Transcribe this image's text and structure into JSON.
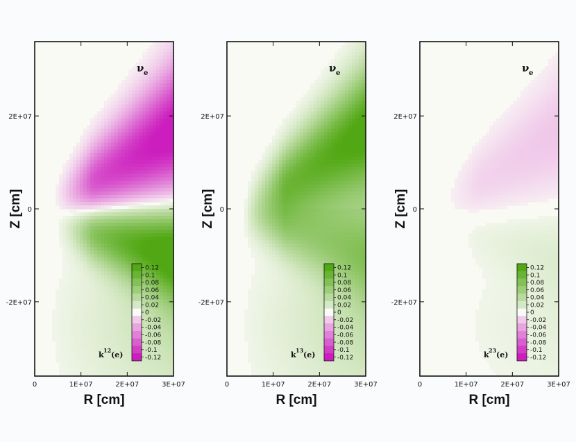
{
  "chart_data": [
    {
      "type": "heatmap",
      "panel_label": "ν",
      "panel_label_sub": "e",
      "quantity_base": "k",
      "quantity_sup": "12",
      "quantity_arg": "(e)",
      "xlabel": "R [cm]",
      "ylabel": "Z [cm]",
      "xlim": [
        0,
        30000000
      ],
      "ylim": [
        -36000000,
        36000000
      ],
      "xticks": [
        0,
        10000000,
        20000000,
        30000000
      ],
      "xtick_labels": [
        "0",
        "1E+07",
        "2E+07",
        "3E+07"
      ],
      "yticks": [
        20000000,
        0,
        -20000000
      ],
      "ytick_labels": [
        "2E+07",
        "0",
        "-2E+07"
      ],
      "field": {
        "upper_amp": -0.12,
        "lower_amp": 0.12,
        "outer_amp": 0.03
      },
      "colorbar": {
        "min": -0.12,
        "max": 0.12,
        "levels": [
          0.12,
          0.1,
          0.08,
          0.06,
          0.04,
          0.02,
          0,
          -0.02,
          -0.04,
          -0.06,
          -0.08,
          -0.1,
          -0.12
        ],
        "labels": [
          "0.12",
          "0.1",
          "0.08",
          "0.06",
          "0.04",
          "0.02",
          "0",
          "-0.02",
          "-0.04",
          "-0.06",
          "-0.08",
          "-0.1",
          "-0.12"
        ]
      }
    },
    {
      "type": "heatmap",
      "panel_label": "ν",
      "panel_label_sub": "e",
      "quantity_base": "k",
      "quantity_sup": "13",
      "quantity_arg": "(e)",
      "xlabel": "R [cm]",
      "ylabel": "Z [cm]",
      "xlim": [
        0,
        30000000
      ],
      "ylim": [
        -36000000,
        36000000
      ],
      "xticks": [
        0,
        10000000,
        20000000,
        30000000
      ],
      "xtick_labels": [
        "0",
        "1E+07",
        "2E+07",
        "3E+07"
      ],
      "yticks": [
        20000000,
        0,
        -20000000
      ],
      "ytick_labels": [
        "2E+07",
        "0",
        "-2E+07"
      ],
      "field": {
        "upper_amp": 0.12,
        "lower_amp": 0.06,
        "outer_amp": 0.03
      },
      "colorbar": {
        "min": -0.12,
        "max": 0.12,
        "levels": [
          0.12,
          0.1,
          0.08,
          0.06,
          0.04,
          0.02,
          0,
          -0.02,
          -0.04,
          -0.06,
          -0.08,
          -0.1,
          -0.12
        ],
        "labels": [
          "0.12",
          "0.1",
          "0.08",
          "0.06",
          "0.04",
          "0.02",
          "0",
          "-0.02",
          "-0.04",
          "-0.06",
          "-0.08",
          "-0.1",
          "-0.12"
        ]
      }
    },
    {
      "type": "heatmap",
      "panel_label": "ν",
      "panel_label_sub": "e",
      "quantity_base": "k",
      "quantity_sup": "23",
      "quantity_arg": "(e)",
      "xlabel": "R [cm]",
      "ylabel": "Z [cm]",
      "xlim": [
        0,
        30000000
      ],
      "ylim": [
        -36000000,
        36000000
      ],
      "xticks": [
        0,
        10000000,
        20000000,
        30000000
      ],
      "xtick_labels": [
        "0",
        "1E+07",
        "2E+07",
        "3E+07"
      ],
      "yticks": [
        20000000,
        0,
        -20000000
      ],
      "ytick_labels": [
        "2E+07",
        "0",
        "-2E+07"
      ],
      "field": {
        "upper_amp": -0.02,
        "lower_amp": 0.01,
        "outer_amp": 0.01
      },
      "colorbar": {
        "min": -0.12,
        "max": 0.12,
        "levels": [
          0.12,
          0.1,
          0.08,
          0.06,
          0.04,
          0.02,
          0,
          -0.02,
          -0.04,
          -0.06,
          -0.08,
          -0.1,
          -0.12
        ],
        "labels": [
          "0.12",
          "0.1",
          "0.08",
          "0.06",
          "0.04",
          "0.02",
          "0",
          "-0.02",
          "-0.04",
          "-0.06",
          "-0.08",
          "-0.1",
          "-0.12"
        ]
      }
    }
  ]
}
